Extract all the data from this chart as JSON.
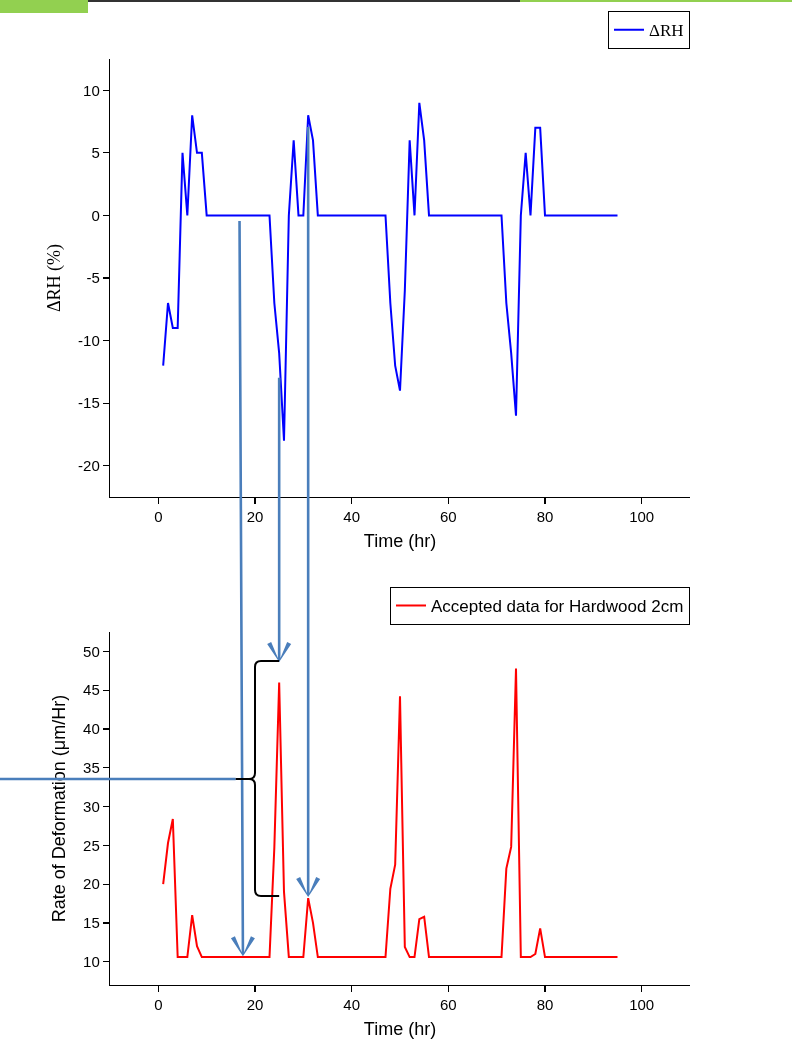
{
  "chart_data": [
    {
      "type": "line",
      "xlabel": "Time (hr)",
      "ylabel": "ΔRH (%)",
      "xlim": [
        -10,
        110
      ],
      "xticks": [
        0,
        20,
        40,
        60,
        80,
        100
      ],
      "ylim": [
        -22.5,
        12.5
      ],
      "yticks": [
        -20,
        -15,
        -10,
        -5,
        0,
        5,
        10
      ],
      "legend": "top right",
      "x": [
        1,
        2,
        3,
        4,
        5,
        6,
        7,
        8,
        9,
        10,
        23,
        24,
        25,
        26,
        27,
        28,
        29,
        30,
        31,
        32,
        33,
        47,
        48,
        49,
        50,
        51,
        52,
        53,
        54,
        55,
        56,
        71,
        72,
        73,
        74,
        75,
        76,
        77,
        78,
        79,
        80,
        95
      ],
      "series": [
        {
          "name": "ΔRH",
          "color": "#0000ff",
          "values": [
            -12,
            -7,
            -9,
            -9,
            5,
            0,
            8,
            5,
            5,
            0,
            0,
            -7,
            -11,
            -18,
            0,
            6,
            0,
            0,
            8,
            6,
            0,
            0,
            -7,
            -12,
            -14,
            -6,
            6,
            0,
            9,
            6,
            0,
            0,
            -7,
            -11,
            -16,
            0,
            5,
            0,
            7,
            7,
            0,
            0
          ]
        }
      ]
    },
    {
      "type": "line",
      "xlabel": "Time (hr)",
      "ylabel": "Rate of Deformation (μm/Hr)",
      "xlim": [
        -10,
        110
      ],
      "xticks": [
        0,
        20,
        40,
        60,
        80,
        100
      ],
      "ylim": [
        7,
        52.5
      ],
      "yticks": [
        10,
        15,
        20,
        25,
        30,
        35,
        40,
        45,
        50
      ],
      "legend": "top right",
      "x": [
        1,
        2,
        3,
        4,
        6,
        7,
        8,
        9,
        23,
        24,
        25,
        26,
        27,
        30,
        31,
        32,
        33,
        47,
        48,
        49,
        50,
        51,
        52,
        53,
        54,
        55,
        56,
        71,
        72,
        73,
        74,
        75,
        77,
        78,
        79,
        80,
        95
      ],
      "series": [
        {
          "name": "Accepted data for Hardwood 2cm",
          "color": "#ff0000",
          "values": [
            20,
            25.3,
            28.4,
            10.6,
            10.6,
            16,
            12,
            10.6,
            10.6,
            24.7,
            46,
            19,
            10.6,
            10.6,
            18.2,
            15,
            10.6,
            10.6,
            19.4,
            22.5,
            44.2,
            11.9,
            10.6,
            10.6,
            15.5,
            15.8,
            10.6,
            10.6,
            22,
            24.8,
            47.8,
            10.6,
            10.6,
            11,
            14.3,
            10.6,
            10.6
          ]
        }
      ]
    }
  ]
}
